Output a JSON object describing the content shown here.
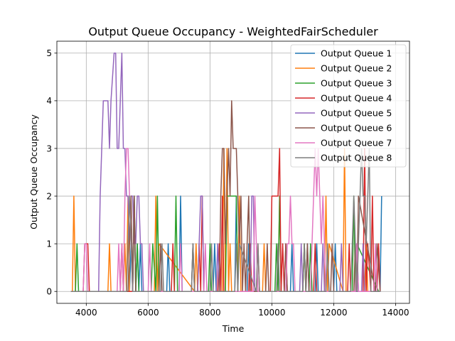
{
  "chart_data": {
    "type": "line",
    "title": "Output Queue Occupancy - WeightedFairScheduler",
    "xlabel": "Time",
    "ylabel": "Output Queue Occupancy",
    "xlim": [
      3050,
      14450
    ],
    "ylim": [
      -0.25,
      5.25
    ],
    "xticks": [
      4000,
      6000,
      8000,
      10000,
      12000,
      14000
    ],
    "xtick_labels": [
      "4000",
      "6000",
      "8000",
      "10000",
      "12000",
      "14000"
    ],
    "yticks": [
      0,
      1,
      2,
      3,
      4,
      5
    ],
    "ytick_labels": [
      "0",
      "1",
      "2",
      "3",
      "4",
      "5"
    ],
    "grid": true,
    "legend_position": "top-right",
    "series": [
      {
        "name": "Output Queue 1",
        "color": "#1f77b4",
        "x": [
          3500,
          5400,
          5450,
          5500,
          5550,
          5600,
          5650,
          5700,
          5750,
          5800,
          6600,
          6650,
          6700,
          6750,
          7000,
          7050,
          7100,
          7150,
          7400,
          7450,
          7500,
          8100,
          8150,
          8200,
          8800,
          8850,
          8900,
          9200,
          9250,
          9300,
          10600,
          10650,
          10700,
          11100,
          11150,
          11200,
          11400,
          11450,
          11500,
          12000,
          12050,
          12100,
          12700,
          12750,
          12800,
          13450,
          13500,
          13550
        ],
        "y": [
          0,
          0,
          1,
          0,
          2,
          0,
          1,
          0,
          1,
          0,
          0,
          1,
          0,
          0,
          0,
          2,
          0,
          0,
          0,
          1,
          0,
          0,
          1,
          0,
          0,
          2,
          0,
          0,
          1,
          0,
          0,
          1,
          0,
          0,
          1,
          0,
          0,
          1,
          0,
          0,
          1,
          0,
          0,
          1,
          0,
          0,
          0,
          2
        ]
      },
      {
        "name": "Output Queue 2",
        "color": "#ff7f0e",
        "x": [
          3500,
          3550,
          3600,
          3650,
          4700,
          4750,
          4800,
          5200,
          5250,
          5300,
          5350,
          5400,
          6200,
          6250,
          6300,
          6350,
          7500,
          7550,
          7600,
          7650,
          8400,
          8450,
          8500,
          8550,
          8600,
          8650,
          8700,
          8900,
          8950,
          9000,
          9700,
          9750,
          9800,
          10200,
          10250,
          10300,
          11000,
          11050,
          11100,
          11700,
          11750,
          11800,
          11850,
          12300,
          12350,
          12400,
          13000,
          13050,
          13100,
          13500
        ],
        "y": [
          0,
          0,
          2,
          0,
          0,
          1,
          0,
          0,
          1,
          0,
          2,
          0,
          0,
          2,
          0,
          1,
          0,
          1,
          0,
          0,
          0,
          3,
          0,
          3,
          0,
          1,
          0,
          0,
          2,
          0,
          0,
          1,
          0,
          0,
          2,
          0,
          0,
          1,
          0,
          0,
          2,
          0,
          1,
          0,
          3,
          0,
          0,
          1,
          0,
          0
        ]
      },
      {
        "name": "Output Queue 3",
        "color": "#2ca02c",
        "x": [
          3550,
          3650,
          3700,
          3750,
          5500,
          5550,
          5600,
          5650,
          5700,
          6100,
          6150,
          6250,
          6300,
          6350,
          6850,
          6900,
          6950,
          7950,
          8000,
          8050,
          8500,
          8550,
          8850,
          8900,
          10100,
          10150,
          10200,
          10250,
          10300,
          11000,
          11050,
          11100,
          11200,
          11250,
          11300,
          12600,
          12650,
          12700,
          12750,
          13450,
          13500
        ],
        "y": [
          0,
          0,
          1,
          0,
          0,
          2,
          0,
          1,
          0,
          0,
          1,
          0,
          2,
          0,
          0,
          2,
          0,
          0,
          1,
          0,
          0,
          2,
          2,
          0,
          0,
          1,
          0,
          2,
          0,
          0,
          1,
          0,
          0,
          1,
          0,
          0,
          2,
          0,
          1,
          0,
          0
        ]
      },
      {
        "name": "Output Queue 4",
        "color": "#d62728",
        "x": [
          3500,
          3900,
          3950,
          4050,
          4100,
          5100,
          5150,
          5200,
          6750,
          6800,
          6850,
          7600,
          7650,
          7700,
          7750,
          7800,
          8250,
          8300,
          8350,
          8400,
          8450,
          9250,
          9300,
          9350,
          9500,
          9550,
          9600,
          9950,
          10000,
          10200,
          10250,
          10300,
          10350,
          10400,
          10450,
          10500,
          11350,
          11400,
          11450,
          12450,
          12500,
          12550,
          12950,
          13000,
          13050,
          13100,
          13200,
          13250,
          13300,
          13400,
          13450,
          13500
        ],
        "y": [
          0,
          0,
          1,
          1,
          0,
          0,
          1,
          0,
          0,
          1,
          0,
          0,
          1,
          0,
          2,
          0,
          0,
          1,
          0,
          2,
          0,
          0,
          1,
          0,
          0,
          1,
          0,
          0,
          2,
          2,
          3,
          0,
          1,
          0,
          1,
          0,
          0,
          1,
          0,
          0,
          1,
          0,
          0,
          3,
          0,
          1,
          0,
          2,
          0,
          0,
          1,
          0
        ]
      },
      {
        "name": "Output Queue 5",
        "color": "#9467bd",
        "x": [
          3500,
          4400,
          4450,
          4500,
          4550,
          4700,
          4750,
          4800,
          4900,
          4950,
          5000,
          5050,
          5100,
          5150,
          5200,
          5250,
          5300,
          5350,
          5400,
          5450,
          5500,
          5550,
          5600,
          5650,
          5700,
          5750,
          5800,
          5850,
          7600,
          7650,
          7700,
          7750,
          7800,
          8200,
          8250,
          8300,
          9300,
          9350,
          9400,
          9450,
          10900,
          10950,
          11000,
          11600,
          11650,
          11700,
          12200,
          12250,
          12300,
          12900,
          12950,
          13000,
          13500
        ],
        "y": [
          0,
          0,
          2,
          3,
          4,
          4,
          3,
          4,
          5,
          5,
          3,
          3,
          4,
          5,
          3,
          3,
          2,
          2,
          1,
          2,
          2,
          1,
          1,
          2,
          2,
          1,
          1,
          0,
          0,
          1,
          2,
          2,
          0,
          0,
          1,
          0,
          0,
          2,
          2,
          0,
          0,
          1,
          0,
          0,
          1,
          0,
          0,
          1,
          0,
          0,
          1,
          0,
          0
        ]
      },
      {
        "name": "Output Queue 6",
        "color": "#8c564b",
        "x": [
          3500,
          5350,
          5400,
          5450,
          5500,
          5550,
          5600,
          6350,
          6400,
          6450,
          7400,
          7450,
          7500,
          8300,
          8350,
          8400,
          8450,
          8500,
          8550,
          8600,
          8650,
          8700,
          8750,
          8800,
          8850,
          8900,
          8950,
          9000,
          9050,
          9100,
          9150,
          9200,
          9250,
          9300,
          9800,
          9850,
          9900,
          10400,
          10450,
          10500,
          11100,
          11150,
          11200,
          11900,
          11950,
          12000,
          12650,
          12700,
          12750,
          12800,
          13350,
          13400,
          13500
        ],
        "y": [
          0,
          0,
          1,
          2,
          0,
          2,
          0,
          0,
          1,
          0,
          0,
          1,
          0,
          0,
          2,
          3,
          3,
          1,
          2,
          3,
          2,
          4,
          3,
          3,
          3,
          2,
          1,
          2,
          0,
          1,
          0,
          1,
          2,
          0,
          0,
          1,
          0,
          0,
          1,
          0,
          0,
          1,
          0,
          0,
          1,
          0,
          0,
          1,
          0,
          2,
          0,
          1,
          0
        ]
      },
      {
        "name": "Output Queue 7",
        "color": "#e377c2",
        "x": [
          3500,
          3900,
          3950,
          4000,
          4050,
          5000,
          5050,
          5100,
          5150,
          5200,
          5250,
          5300,
          5350,
          5400,
          5450,
          5500,
          6000,
          6050,
          6100,
          7000,
          7050,
          7100,
          7800,
          7850,
          7900,
          9400,
          9450,
          9500,
          9550,
          10450,
          10500,
          10550,
          10600,
          10650,
          10700,
          10750,
          10800,
          11250,
          11300,
          11350,
          11400,
          11450,
          11500,
          11550,
          11600,
          11650,
          11700,
          11750,
          12700,
          12750,
          12800,
          13300,
          13350,
          13400,
          13500
        ],
        "y": [
          0,
          0,
          1,
          1,
          0,
          0,
          1,
          0,
          1,
          0,
          2,
          3,
          3,
          2,
          1,
          0,
          0,
          1,
          0,
          0,
          1,
          0,
          0,
          1,
          0,
          0,
          2,
          1,
          0,
          0,
          1,
          1,
          2,
          1,
          1,
          0,
          0,
          0,
          1,
          2,
          3,
          2,
          3,
          2,
          1,
          2,
          1,
          0,
          0,
          1,
          0,
          0,
          1,
          0,
          0
        ]
      },
      {
        "name": "Output Queue 8",
        "color": "#7f7f7f",
        "x": [
          3500,
          5300,
          5350,
          5400,
          5450,
          5500,
          6400,
          6450,
          6500,
          7400,
          7450,
          7500,
          8000,
          8050,
          8100,
          8800,
          8850,
          8900,
          8950,
          9500,
          9550,
          9600,
          10150,
          10200,
          10250,
          11000,
          11050,
          11100,
          11750,
          11800,
          11850,
          12550,
          12600,
          12650,
          12700,
          12750,
          12800,
          12850,
          12900,
          12950,
          13000,
          13050,
          13100,
          13150,
          13200,
          13500
        ],
        "y": [
          0,
          0,
          1,
          2,
          1,
          0,
          0,
          1,
          0,
          0,
          1,
          0,
          0,
          1,
          0,
          0,
          1,
          0,
          1,
          0,
          1,
          0,
          0,
          1,
          0,
          0,
          1,
          0,
          0,
          1,
          0,
          0,
          1,
          2,
          1,
          0,
          1,
          2,
          3,
          2,
          2,
          1,
          2,
          3,
          0,
          0
        ]
      }
    ]
  }
}
